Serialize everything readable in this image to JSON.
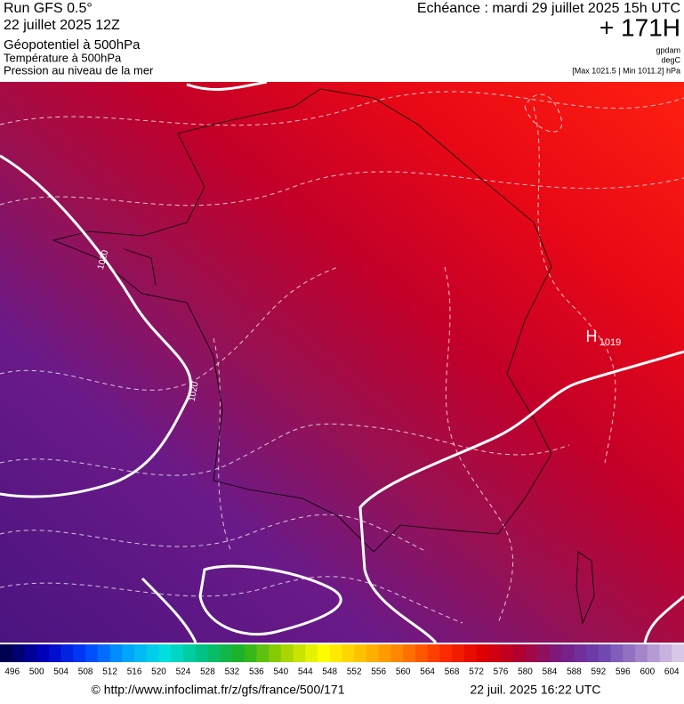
{
  "header": {
    "model": "Run GFS 0.5°",
    "run_date": "22 juillet 2025 12Z",
    "field": "Géopotentiel à 500hPa",
    "field2": "Température à 500hPa",
    "field3": "Pression au niveau de la mer",
    "echeance": "Echéance : mardi 29 juillet 2025 15h UTC",
    "lead": "+ 171H",
    "unit1": "gpdam",
    "unit2": "degC",
    "unit3": "[Max 1021.5 | Min 1011.2] hPa"
  },
  "map": {
    "labels": [
      "1020",
      "1020",
      "H",
      "1019"
    ]
  },
  "colorbar": {
    "labels": [
      496,
      500,
      504,
      508,
      512,
      516,
      520,
      524,
      528,
      532,
      536,
      540,
      544,
      548,
      552,
      556,
      560,
      564,
      568,
      572,
      576,
      580,
      584,
      588,
      592,
      596,
      600,
      604
    ]
  },
  "footer": {
    "url": "© http://www.infoclimat.fr/z/gfs/france/500/171",
    "date": "22 juil. 2025 16:22 UTC"
  }
}
